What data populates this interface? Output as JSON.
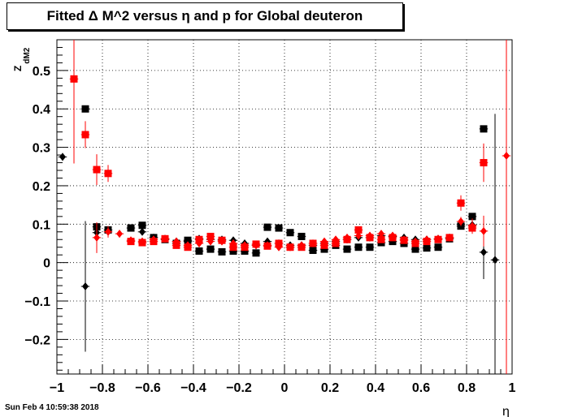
{
  "title": "Fitted Δ M^2 versus η and p for Global deuteron",
  "footer": "Sun Feb  4 10:59:38 2018",
  "chart_data": {
    "type": "scatter",
    "xlabel": "η",
    "ylabel": "Z",
    "ylabel_sub": "dM2",
    "xlim": [
      -1,
      1
    ],
    "ylim": [
      -0.29,
      0.58
    ],
    "xticks": [
      -1,
      -0.8,
      -0.6,
      -0.4,
      -0.2,
      0,
      0.2,
      0.4,
      0.6,
      0.8,
      1
    ],
    "xtick_labels": [
      "−1",
      "−0.8",
      "−0.6",
      "−0.4",
      "−0.2",
      "0",
      "0.2",
      "0.4",
      "0.6",
      "0.8",
      "1"
    ],
    "yticks": [
      -0.2,
      -0.1,
      0,
      0.1,
      0.2,
      0.3,
      0.4,
      0.5
    ],
    "ytick_labels": [
      "−0.2",
      "−0.1",
      "0",
      "0.1",
      "0.2",
      "0.3",
      "0.4",
      "0.5"
    ],
    "grid": true,
    "series": [
      {
        "color": "#000000",
        "marker": "diamond",
        "x": [
          -0.975,
          -0.875,
          -0.825,
          -0.625,
          -0.575,
          -0.525,
          -0.475,
          -0.425,
          -0.375,
          -0.325,
          -0.275,
          -0.225,
          -0.175,
          -0.125,
          -0.075,
          -0.025,
          0.025,
          0.075,
          0.125,
          0.175,
          0.225,
          0.275,
          0.325,
          0.375,
          0.425,
          0.475,
          0.525,
          0.575,
          0.625,
          0.675,
          0.725,
          0.775,
          0.825,
          0.875,
          0.925
        ],
        "y": [
          0.275,
          -0.062,
          0.078,
          0.08,
          0.065,
          0.062,
          0.055,
          0.055,
          0.062,
          0.06,
          0.06,
          0.058,
          0.05,
          0.045,
          0.055,
          0.05,
          0.045,
          0.045,
          0.045,
          0.05,
          0.055,
          0.06,
          0.065,
          0.065,
          0.07,
          0.068,
          0.065,
          0.06,
          0.06,
          0.062,
          0.065,
          0.1,
          0.098,
          0.027,
          0.007
        ],
        "yerr": [
          0.01,
          0.17,
          0.01,
          0.008,
          0.006,
          0.005,
          0.005,
          0.005,
          0.005,
          0.005,
          0.005,
          0.005,
          0.005,
          0.005,
          0.005,
          0.005,
          0.005,
          0.005,
          0.005,
          0.005,
          0.005,
          0.005,
          0.005,
          0.005,
          0.005,
          0.005,
          0.005,
          0.005,
          0.005,
          0.005,
          0.005,
          0.008,
          0.012,
          0.07,
          0.38
        ]
      },
      {
        "color": "#000000",
        "marker": "square",
        "x": [
          -0.875,
          -0.825,
          -0.775,
          -0.675,
          -0.625,
          -0.575,
          -0.525,
          -0.475,
          -0.425,
          -0.375,
          -0.325,
          -0.275,
          -0.225,
          -0.175,
          -0.125,
          -0.075,
          -0.025,
          0.025,
          0.075,
          0.125,
          0.175,
          0.225,
          0.275,
          0.325,
          0.375,
          0.425,
          0.475,
          0.525,
          0.575,
          0.625,
          0.675,
          0.725,
          0.775,
          0.825,
          0.875
        ],
        "y": [
          0.4,
          0.093,
          0.085,
          0.09,
          0.097,
          0.065,
          0.06,
          0.05,
          0.058,
          0.03,
          0.035,
          0.028,
          0.03,
          0.03,
          0.025,
          0.092,
          0.09,
          0.078,
          0.068,
          0.032,
          0.035,
          0.045,
          0.035,
          0.04,
          0.04,
          0.052,
          0.055,
          0.05,
          0.035,
          0.038,
          0.04,
          0.062,
          0.095,
          0.12,
          0.348
        ]
      },
      {
        "color": "#ff0000",
        "marker": "diamond",
        "x": [
          -0.825,
          -0.775,
          -0.725,
          -0.675,
          -0.625,
          -0.575,
          -0.525,
          -0.475,
          -0.425,
          -0.375,
          -0.325,
          -0.275,
          -0.225,
          -0.175,
          -0.125,
          -0.075,
          -0.025,
          0.025,
          0.075,
          0.125,
          0.175,
          0.225,
          0.275,
          0.325,
          0.375,
          0.425,
          0.475,
          0.525,
          0.575,
          0.625,
          0.675,
          0.725,
          0.775,
          0.825,
          0.875,
          0.975
        ],
        "y": [
          0.065,
          0.08,
          0.075,
          0.058,
          0.055,
          0.06,
          0.062,
          0.055,
          0.045,
          0.05,
          0.055,
          0.055,
          0.05,
          0.045,
          0.045,
          0.045,
          0.04,
          0.04,
          0.045,
          0.05,
          0.055,
          0.06,
          0.065,
          0.07,
          0.07,
          0.075,
          0.07,
          0.06,
          0.055,
          0.06,
          0.062,
          0.065,
          0.107,
          0.095,
          0.082,
          0.278
        ],
        "yerr": [
          0.04,
          0.015,
          0.01,
          0.006,
          0.005,
          0.005,
          0.005,
          0.005,
          0.005,
          0.005,
          0.005,
          0.005,
          0.005,
          0.005,
          0.005,
          0.005,
          0.005,
          0.005,
          0.005,
          0.005,
          0.005,
          0.005,
          0.005,
          0.005,
          0.005,
          0.005,
          0.005,
          0.005,
          0.005,
          0.005,
          0.005,
          0.005,
          0.012,
          0.02,
          0.04,
          0.6
        ]
      },
      {
        "color": "#ff0000",
        "marker": "square",
        "x": [
          -0.925,
          -0.875,
          -0.825,
          -0.775,
          -0.675,
          -0.625,
          -0.575,
          -0.525,
          -0.475,
          -0.425,
          -0.375,
          -0.325,
          -0.275,
          -0.225,
          -0.175,
          -0.125,
          -0.075,
          -0.025,
          0.025,
          0.075,
          0.125,
          0.175,
          0.225,
          0.275,
          0.325,
          0.375,
          0.425,
          0.475,
          0.525,
          0.575,
          0.625,
          0.675,
          0.725,
          0.775,
          0.825,
          0.875
        ],
        "y": [
          0.478,
          0.333,
          0.242,
          0.232,
          0.055,
          0.052,
          0.055,
          0.062,
          0.045,
          0.04,
          0.06,
          0.068,
          0.058,
          0.04,
          0.04,
          0.048,
          0.043,
          0.05,
          0.04,
          0.04,
          0.05,
          0.045,
          0.05,
          0.06,
          0.085,
          0.065,
          0.06,
          0.065,
          0.058,
          0.05,
          0.055,
          0.06,
          0.065,
          0.155,
          0.09,
          0.26
        ],
        "yerr": [
          0.22,
          0.035,
          0.04,
          0.022,
          0.006,
          0.005,
          0.005,
          0.005,
          0.005,
          0.005,
          0.005,
          0.005,
          0.005,
          0.005,
          0.005,
          0.005,
          0.005,
          0.005,
          0.005,
          0.005,
          0.005,
          0.005,
          0.005,
          0.005,
          0.005,
          0.005,
          0.005,
          0.005,
          0.005,
          0.005,
          0.005,
          0.005,
          0.005,
          0.02,
          0.015,
          0.05
        ]
      }
    ]
  }
}
